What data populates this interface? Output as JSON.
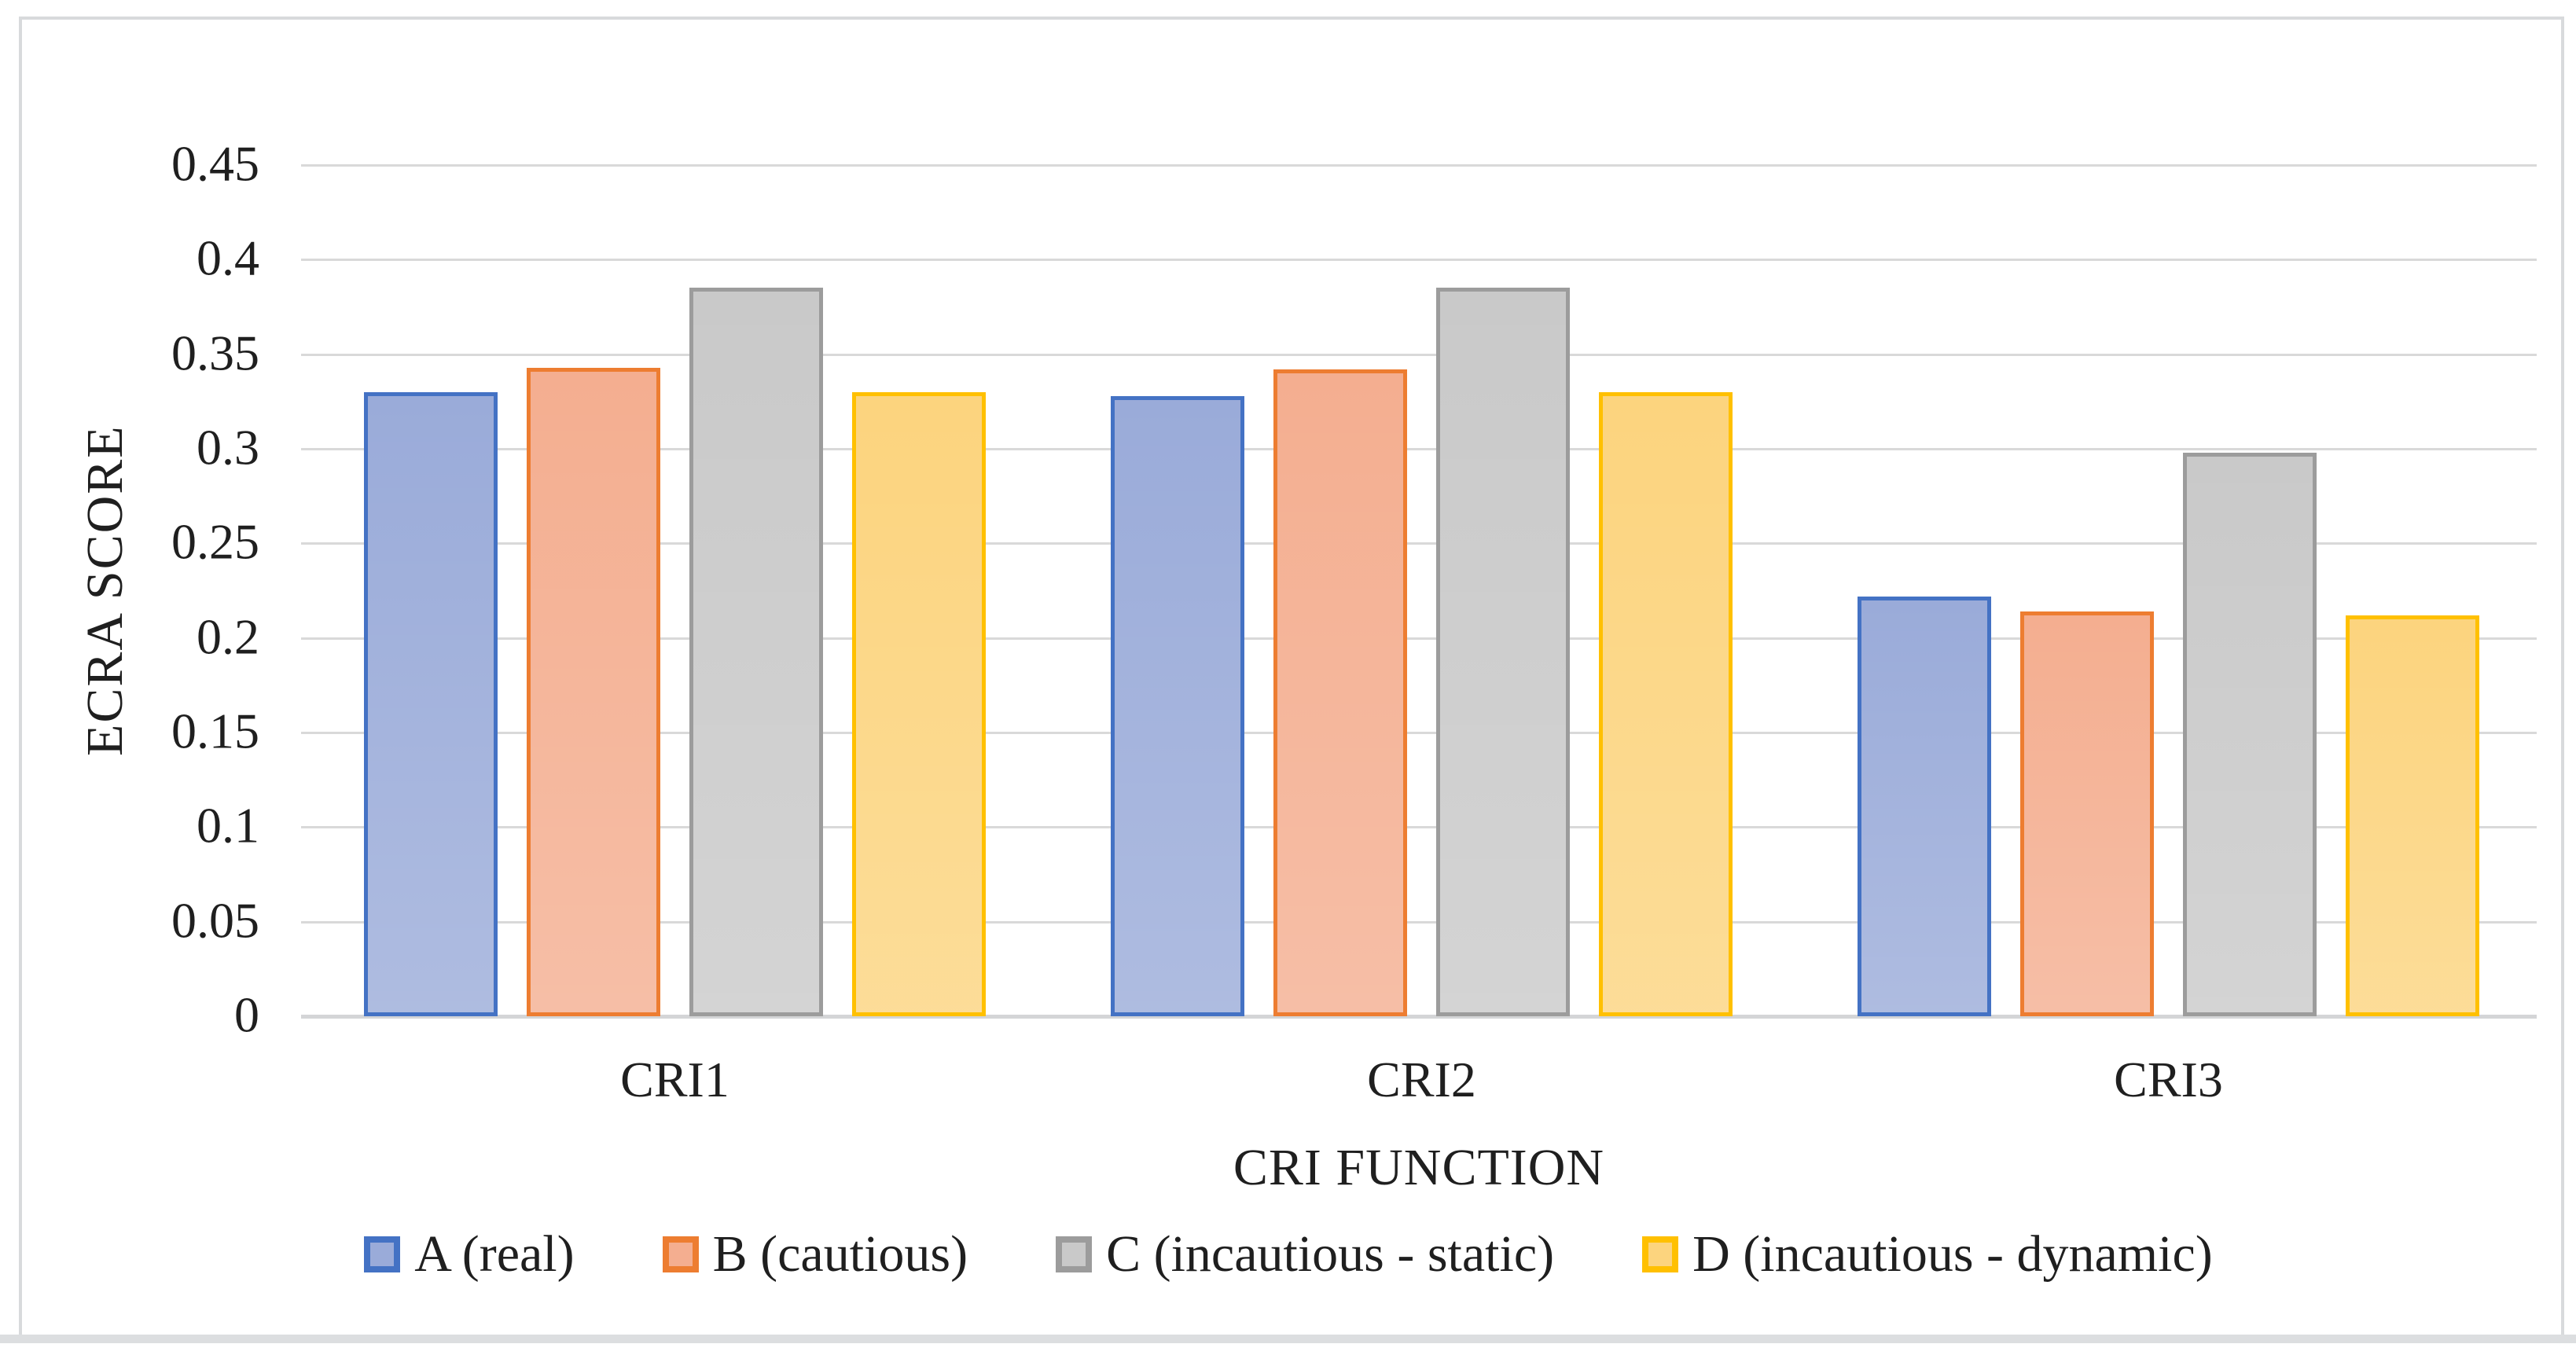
{
  "figure": {
    "background": "#ffffff",
    "border_color": "#d8dadc",
    "bottom_band_color": "#dcdee0",
    "gridline_color": "#d9d9d9",
    "axis_line_color": "#d4d5d7",
    "text_color": "#1f1f1f"
  },
  "chart_data": {
    "type": "bar",
    "title": "",
    "xlabel": "CRI FUNCTION",
    "ylabel": "ECRA SCORE",
    "categories": [
      "CRI1",
      "CRI2",
      "CRI3"
    ],
    "series": [
      {
        "name": "A (real)",
        "fill": "#9aabd9",
        "border": "#4472c4",
        "values": [
          0.33,
          0.328,
          0.222
        ]
      },
      {
        "name": "B (cautious)",
        "fill": "#f4ae90",
        "border": "#ed7d31",
        "values": [
          0.343,
          0.342,
          0.214
        ]
      },
      {
        "name": "C (incautious - static)",
        "fill": "#c9c9c9",
        "border": "#9c9c9c",
        "values": [
          0.385,
          0.385,
          0.298
        ]
      },
      {
        "name": "D (incautious - dynamic)",
        "fill": "#fcd47e",
        "border": "#ffc000",
        "values": [
          0.33,
          0.33,
          0.212
        ]
      }
    ],
    "ylim": [
      0,
      0.45
    ],
    "ytick_step": 0.05,
    "ytick_labels": [
      "0",
      "0.05",
      "0.1",
      "0.15",
      "0.2",
      "0.25",
      "0.3",
      "0.35",
      "0.4",
      "0.45"
    ],
    "grid": true,
    "legend_position": "bottom"
  }
}
